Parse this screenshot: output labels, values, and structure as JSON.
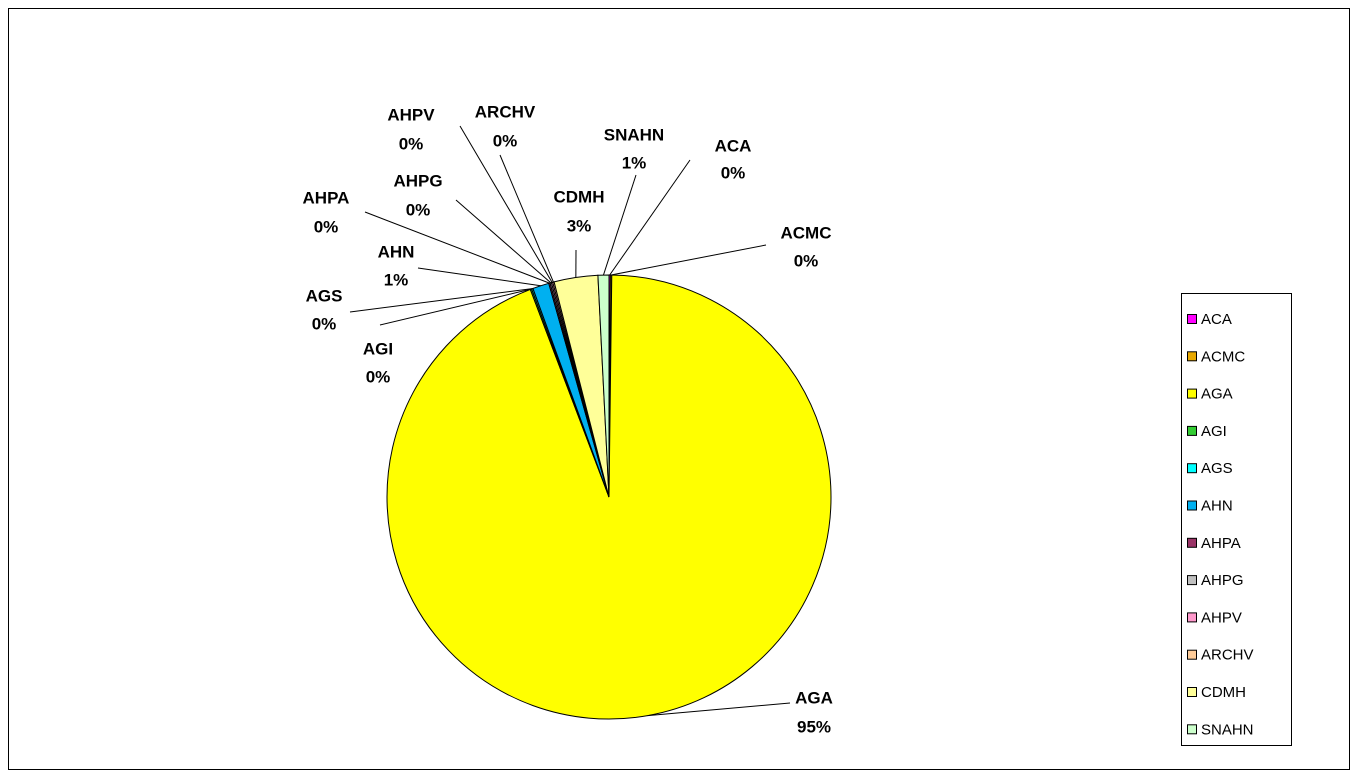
{
  "chart_data": {
    "type": "pie",
    "categories": [
      "ACA",
      "ACMC",
      "AGA",
      "AGI",
      "AGS",
      "AHN",
      "AHPA",
      "AHPG",
      "AHPV",
      "ARCHV",
      "CDMH",
      "SNAHN"
    ],
    "values": [
      0.1,
      0.1,
      94.6,
      0.1,
      0.1,
      1.2,
      0.1,
      0.1,
      0.1,
      0.1,
      3.2,
      0.8
    ],
    "value_labels": [
      "0%",
      "0%",
      "95%",
      "0%",
      "0%",
      "1%",
      "0%",
      "0%",
      "0%",
      "0%",
      "3%",
      "1%"
    ],
    "colors": [
      "#FF00FF",
      "#E8A800",
      "#FFFF00",
      "#33CC33",
      "#00FFFF",
      "#00B0F0",
      "#993366",
      "#C0C0C0",
      "#FF99CC",
      "#FFCC99",
      "#FFFF99",
      "#CCFFCC"
    ],
    "legend": "right"
  }
}
